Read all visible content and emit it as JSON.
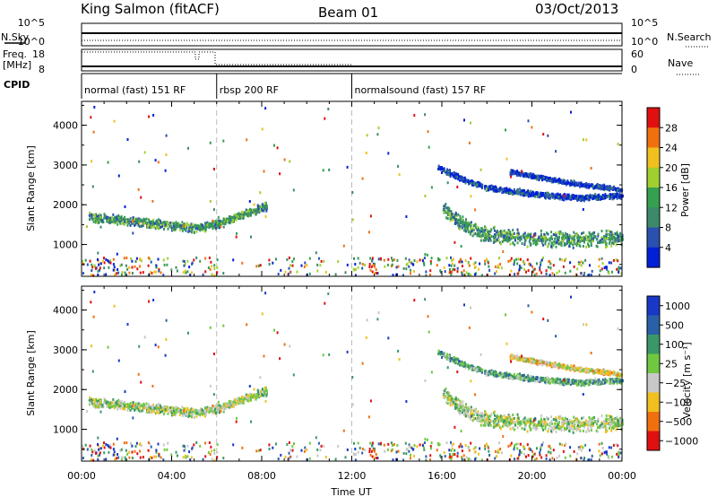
{
  "header": {
    "title": "King Salmon (fitACF)",
    "beam": "Beam 01",
    "date": "03/Oct/2013"
  },
  "strips": {
    "nsky_label": "N.Sky",
    "nsearch_label": "N.Search",
    "freq_label_1": "Freq.",
    "freq_label_2": "[MHz]",
    "nave_label": "Nave",
    "cpid_label": "CPID",
    "nsky_ticks": [
      "10^5",
      "10^0"
    ],
    "nsearch_ticks": [
      "10^5",
      "10^0"
    ],
    "freq_ticks": [
      "18",
      "8"
    ],
    "nave_ticks": [
      "60",
      "0"
    ]
  },
  "cpid": {
    "segments": [
      {
        "label": "normal (fast) 151 RF",
        "start": 0,
        "end": 6
      },
      {
        "label": "rbsp 200 RF",
        "start": 6,
        "end": 12
      },
      {
        "label": "normalsound (fast) 157 RF",
        "start": 12,
        "end": 24
      }
    ]
  },
  "chart_data": [
    {
      "type": "heatmap",
      "name": "power",
      "ylabel": "Slant Range [km]",
      "ylim": [
        200,
        4600
      ],
      "yticks": [
        "1000",
        "2000",
        "3000",
        "4000"
      ],
      "xlim": [
        0,
        24
      ],
      "colorbar_label": "Power [dB]",
      "colorbar_ticks": [
        "4",
        "8",
        "12",
        "16",
        "20",
        "24",
        "28"
      ],
      "colors": [
        "#0020d8",
        "#2a50b0",
        "#3c8a6a",
        "#34a050",
        "#a0d030",
        "#f0c020",
        "#f07010",
        "#e01010"
      ],
      "bands": [
        {
          "x": [
            0.3,
            2,
            3.5,
            5,
            6,
            7,
            8.2
          ],
          "y": [
            1720,
            1620,
            1530,
            1440,
            1530,
            1760,
            2000
          ],
          "width": 130,
          "level": 3
        },
        {
          "x": [
            16,
            17,
            18,
            20,
            22,
            24
          ],
          "y": [
            1950,
            1500,
            1280,
            1180,
            1150,
            1180
          ],
          "width": 220,
          "level": 3
        },
        {
          "x": [
            15.8,
            17,
            18,
            20,
            22,
            24
          ],
          "y": [
            2950,
            2650,
            2450,
            2300,
            2200,
            2250
          ],
          "width": 80,
          "level": 1
        },
        {
          "x": [
            19,
            20.5,
            22,
            24
          ],
          "y": [
            2850,
            2700,
            2550,
            2400
          ],
          "width": 70,
          "level": 1
        }
      ]
    },
    {
      "type": "heatmap",
      "name": "velocity",
      "ylabel": "Slant Range [km]",
      "ylim": [
        200,
        4600
      ],
      "yticks": [
        "1000",
        "2000",
        "3000",
        "4000"
      ],
      "xlim": [
        0,
        24
      ],
      "colorbar_label": "Velocity [m s⁻¹]",
      "colorbar_ticks": [
        "1000",
        "500",
        "100",
        "25",
        "−25",
        "−100",
        "−500",
        "−1000"
      ],
      "colors": [
        "#1838c8",
        "#2a60a8",
        "#3a9868",
        "#70c840",
        "#c8c8c8",
        "#f0c020",
        "#f07010",
        "#e01010"
      ],
      "bands": [
        {
          "x": [
            0.3,
            2,
            3.5,
            5,
            6,
            7,
            8.2
          ],
          "y": [
            1720,
            1620,
            1530,
            1440,
            1530,
            1760,
            2000
          ],
          "width": 130,
          "level": 4
        },
        {
          "x": [
            16,
            17,
            18,
            20,
            22,
            24
          ],
          "y": [
            1950,
            1500,
            1280,
            1180,
            1150,
            1180
          ],
          "width": 220,
          "level": 4
        },
        {
          "x": [
            15.8,
            17,
            18,
            20,
            22,
            24
          ],
          "y": [
            2950,
            2650,
            2450,
            2300,
            2200,
            2250
          ],
          "width": 80,
          "level": 3
        },
        {
          "x": [
            19,
            20.5,
            22,
            24
          ],
          "y": [
            2850,
            2700,
            2550,
            2400
          ],
          "width": 70,
          "level": 5
        }
      ]
    }
  ],
  "xaxis": {
    "label": "Time UT",
    "ticks": [
      "00:00",
      "04:00",
      "08:00",
      "12:00",
      "16:00",
      "20:00",
      "00:00"
    ]
  }
}
